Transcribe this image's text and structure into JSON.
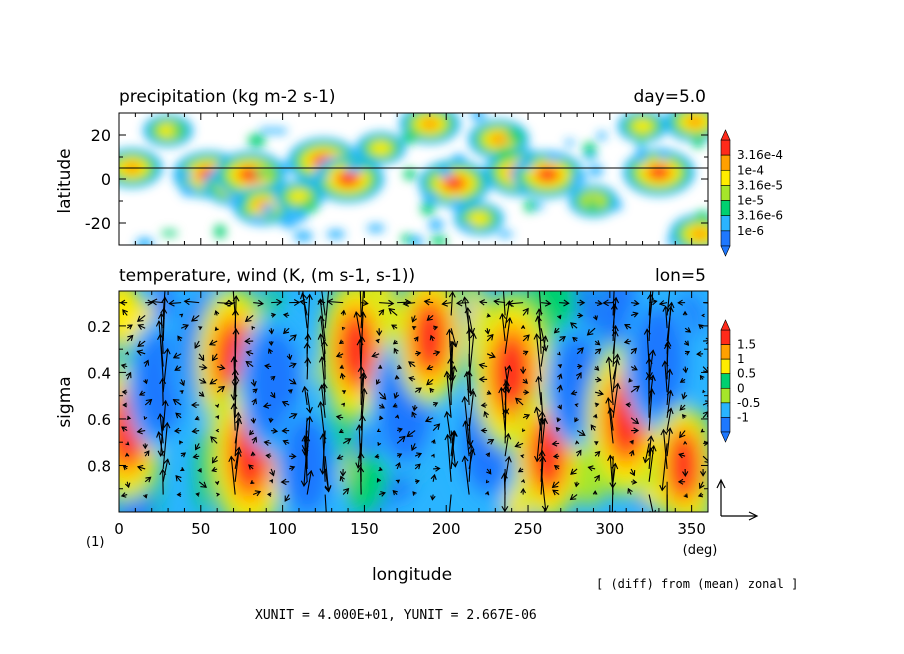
{
  "figure_label": "(1)",
  "footer": {
    "note": "[ (diff) from (mean) zonal ]",
    "units": "XUNIT = 4.000E+01, YUNIT = 2.667E-06"
  },
  "colors": {
    "blue": "#1e78ff",
    "cyan": "#2ab4ff",
    "green": "#00d070",
    "lightgreen": "#a6e62a",
    "yellow": "#ffec00",
    "orange": "#ffa000",
    "red": "#ff2a1a",
    "white": "#ffffff"
  },
  "chart_data": [
    {
      "type": "heatmap",
      "title": "precipitation (kg m-2 s-1)",
      "right_title": "day=5.0",
      "xlabel": "longitude",
      "ylabel": "latitude",
      "xlim": [
        0,
        360
      ],
      "ylim": [
        -30,
        30
      ],
      "yticks": [
        "20",
        "0",
        "-20"
      ],
      "colorbar": {
        "labels": [
          "3.16e-4",
          "1e-4",
          "3.16e-5",
          "1e-5",
          "3.16e-6",
          "1e-6"
        ],
        "levels": [
          "1e-6",
          "3.16e-6",
          "1e-5",
          "3.16e-5",
          "1e-4",
          "3.16e-4"
        ]
      },
      "reference_line_latitude": 5,
      "precip_centers": [
        {
          "lon": 8,
          "lat": 5,
          "level": 4
        },
        {
          "lon": 30,
          "lat": 22,
          "level": 3
        },
        {
          "lon": 55,
          "lat": 2,
          "level": 5
        },
        {
          "lon": 70,
          "lat": -3,
          "level": 4
        },
        {
          "lon": 80,
          "lat": 2,
          "level": 5
        },
        {
          "lon": 88,
          "lat": -12,
          "level": 4
        },
        {
          "lon": 110,
          "lat": -8,
          "level": 3
        },
        {
          "lon": 125,
          "lat": 8,
          "level": 5
        },
        {
          "lon": 140,
          "lat": 0,
          "level": 5
        },
        {
          "lon": 160,
          "lat": 14,
          "level": 3
        },
        {
          "lon": 190,
          "lat": 25,
          "level": 4
        },
        {
          "lon": 205,
          "lat": -2,
          "level": 5
        },
        {
          "lon": 220,
          "lat": -18,
          "level": 3
        },
        {
          "lon": 232,
          "lat": 18,
          "level": 4
        },
        {
          "lon": 245,
          "lat": 3,
          "level": 5
        },
        {
          "lon": 262,
          "lat": 2,
          "level": 5
        },
        {
          "lon": 290,
          "lat": -10,
          "level": 3
        },
        {
          "lon": 320,
          "lat": 24,
          "level": 3
        },
        {
          "lon": 330,
          "lat": 3,
          "level": 5
        },
        {
          "lon": 352,
          "lat": 26,
          "level": 4
        },
        {
          "lon": 355,
          "lat": -25,
          "level": 4
        }
      ]
    },
    {
      "type": "heatmap",
      "title": "temperature, wind (K, (m s-1, s-1))",
      "right_title": "lon=5",
      "xlabel": "longitude",
      "xunit": "(deg)",
      "ylabel": "sigma",
      "xlim": [
        0,
        360
      ],
      "ylim": [
        1.0,
        0.05
      ],
      "xticks": [
        "0",
        "50",
        "100",
        "150",
        "200",
        "250",
        "300",
        "350"
      ],
      "yticks": [
        "0.2",
        "0.4",
        "0.6",
        "0.8"
      ],
      "colorbar": {
        "labels": [
          "1.5",
          "1",
          "0.5",
          "0",
          "-0.5",
          "-1"
        ],
        "levels": [
          -1,
          -0.5,
          0,
          0.5,
          1,
          1.5
        ]
      },
      "temperature_anomaly_centers": [
        {
          "lon": 5,
          "sigma": 0.65,
          "value": 1.3
        },
        {
          "lon": 25,
          "sigma": 0.45,
          "value": -1.2
        },
        {
          "lon": 55,
          "sigma": 0.3,
          "value": -1.4
        },
        {
          "lon": 70,
          "sigma": 0.35,
          "value": 1.4
        },
        {
          "lon": 80,
          "sigma": 0.75,
          "value": 1.5
        },
        {
          "lon": 95,
          "sigma": 0.45,
          "value": -1.3
        },
        {
          "lon": 115,
          "sigma": 0.8,
          "value": -1.1
        },
        {
          "lon": 145,
          "sigma": 0.3,
          "value": 1.3
        },
        {
          "lon": 175,
          "sigma": 0.55,
          "value": -1.3
        },
        {
          "lon": 190,
          "sigma": 0.25,
          "value": 1.2
        },
        {
          "lon": 225,
          "sigma": 0.7,
          "value": -1.2
        },
        {
          "lon": 240,
          "sigma": 0.4,
          "value": 1.5
        },
        {
          "lon": 262,
          "sigma": 0.75,
          "value": 1.2
        },
        {
          "lon": 280,
          "sigma": 0.45,
          "value": -1.1
        },
        {
          "lon": 310,
          "sigma": 0.6,
          "value": 1.5
        },
        {
          "lon": 330,
          "sigma": 0.35,
          "value": -1.3
        },
        {
          "lon": 345,
          "sigma": 0.8,
          "value": 1.0
        }
      ],
      "vector_reference": {
        "u": 40,
        "w": 2.667e-06
      }
    }
  ]
}
